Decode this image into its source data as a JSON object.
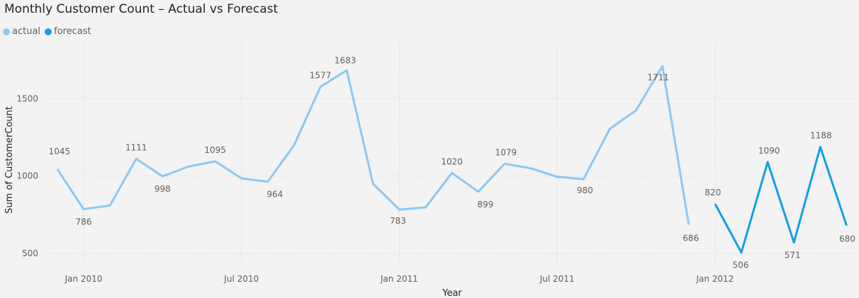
{
  "chart_data": {
    "type": "line",
    "title": "Monthly Customer Count – Actual vs Forecast",
    "xlabel": "Year",
    "ylabel": "Sum of CustomerCount",
    "x_ticks": [
      "Jan 2010",
      "Jul 2010",
      "Jan 2011",
      "Jul 2011",
      "Jan 2012"
    ],
    "y_ticks": [
      500,
      1000,
      1500
    ],
    "ylim": [
      450,
      1750
    ],
    "legend_position": "top-left",
    "series": [
      {
        "name": "actual",
        "color": "#8cc8f4",
        "points": [
          {
            "x": "2009-12",
            "y": 1045,
            "label": "1045"
          },
          {
            "x": "2010-01",
            "y": 786,
            "label": "786"
          },
          {
            "x": "2010-02",
            "y": 810
          },
          {
            "x": "2010-03",
            "y": 1111,
            "label": "1111"
          },
          {
            "x": "2010-04",
            "y": 998,
            "label": "998"
          },
          {
            "x": "2010-05",
            "y": 1062
          },
          {
            "x": "2010-06",
            "y": 1095,
            "label": "1095"
          },
          {
            "x": "2010-07",
            "y": 985
          },
          {
            "x": "2010-08",
            "y": 964,
            "label": "964"
          },
          {
            "x": "2010-09",
            "y": 1200
          },
          {
            "x": "2010-10",
            "y": 1577,
            "label": "1577"
          },
          {
            "x": "2010-11",
            "y": 1683,
            "label": "1683"
          },
          {
            "x": "2010-12",
            "y": 950
          },
          {
            "x": "2011-01",
            "y": 783,
            "label": "783"
          },
          {
            "x": "2011-02",
            "y": 798
          },
          {
            "x": "2011-03",
            "y": 1020,
            "label": "1020"
          },
          {
            "x": "2011-04",
            "y": 899,
            "label": "899"
          },
          {
            "x": "2011-05",
            "y": 1079,
            "label": "1079"
          },
          {
            "x": "2011-06",
            "y": 1050
          },
          {
            "x": "2011-07",
            "y": 995
          },
          {
            "x": "2011-08",
            "y": 980,
            "label": "980"
          },
          {
            "x": "2011-09",
            "y": 1305
          },
          {
            "x": "2011-10",
            "y": 1425
          },
          {
            "x": "2011-11",
            "y": 1711,
            "label": "1711"
          },
          {
            "x": "2011-12",
            "y": 686,
            "label": "686"
          }
        ]
      },
      {
        "name": "forecast",
        "color": "#139fe6",
        "points": [
          {
            "x": "2012-01",
            "y": 820,
            "label": "820"
          },
          {
            "x": "2012-02",
            "y": 506,
            "label": "506"
          },
          {
            "x": "2012-03",
            "y": 1090,
            "label": "1090"
          },
          {
            "x": "2012-04",
            "y": 571,
            "label": "571"
          },
          {
            "x": "2012-05",
            "y": 1188,
            "label": "1188"
          },
          {
            "x": "2012-06",
            "y": 680,
            "label": "680"
          }
        ]
      }
    ]
  }
}
